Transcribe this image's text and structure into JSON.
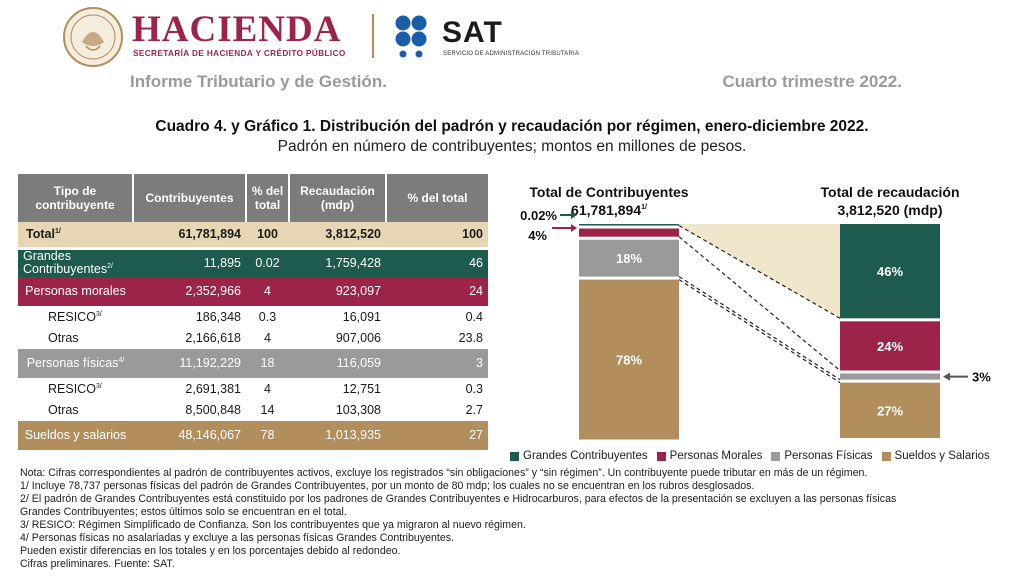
{
  "header": {
    "hacienda": "HACIENDA",
    "hacienda_sub": "SECRETARÍA DE HACIENDA Y CRÉDITO PÚBLICO",
    "sat": "SAT",
    "sat_sub": "SERVICIO DE ADMINISTRACIÓN TRIBUTARIA",
    "report": "Informe Tributario y de Gestión.",
    "period": "Cuarto trimestre 2022."
  },
  "title": "Cuadro 4. y Gráfico 1. Distribución del padrón y recaudación por régimen, enero-diciembre 2022.",
  "subtitle": "Padrón en número de contribuyentes; montos en millones de pesos.",
  "table": {
    "headers": [
      "Tipo de contribuyente",
      "Contribuyentes",
      "% del total",
      "Recaudación (mdp)",
      "% del total"
    ],
    "total": {
      "label": "Total",
      "sup": "1/",
      "contribuyentes": "61,781,894",
      "pct_c": "100",
      "recaudacion": "3,812,520",
      "pct_r": "100"
    },
    "grandes": {
      "label": "Grandes Contribuyentes",
      "sup": "2/",
      "contribuyentes": "11,895",
      "pct_c": "0.02",
      "recaudacion": "1,759,428",
      "pct_r": "46"
    },
    "morales": {
      "label": "Personas morales",
      "contribuyentes": "2,352,966",
      "pct_c": "4",
      "recaudacion": "923,097",
      "pct_r": "24"
    },
    "morales_resico": {
      "label": "RESICO",
      "sup": "3/",
      "contribuyentes": "186,348",
      "pct_c": "0.3",
      "recaudacion": "16,091",
      "pct_r": "0.4"
    },
    "morales_otras": {
      "label": "Otras",
      "contribuyentes": "2,166,618",
      "pct_c": "4",
      "recaudacion": "907,006",
      "pct_r": "23.8"
    },
    "fisicas": {
      "label": "Personas físicas",
      "sup": "4/",
      "contribuyentes": "11,192,229",
      "pct_c": "18",
      "recaudacion": "116,059",
      "pct_r": "3"
    },
    "fisicas_resico": {
      "label": "RESICO",
      "sup": "3/",
      "contribuyentes": "2,691,381",
      "pct_c": "4",
      "recaudacion": "12,751",
      "pct_r": "0.3"
    },
    "fisicas_otras": {
      "label": "Otras",
      "contribuyentes": "8,500,848",
      "pct_c": "14",
      "recaudacion": "103,308",
      "pct_r": "2.7"
    },
    "sueldos": {
      "label": "Sueldos y salarios",
      "contribuyentes": "48,146,067",
      "pct_c": "78",
      "recaudacion": "1,013,935",
      "pct_r": "27"
    }
  },
  "chart_data": {
    "type": "bar",
    "stacked": true,
    "categories": [
      "Total de Contribuyentes",
      "Total de recaudación"
    ],
    "category_subtitles": [
      "61,781,894",
      "3,812,520 (mdp)"
    ],
    "category_sups": [
      "1/",
      ""
    ],
    "series": [
      {
        "name": "Grandes Contribuyentes",
        "color": "#1e5b4f",
        "values": [
          0.02,
          46
        ],
        "labels": [
          "0.02%",
          "46%"
        ]
      },
      {
        "name": "Personas Morales",
        "color": "#9d2449",
        "values": [
          4,
          24
        ],
        "labels": [
          "4%",
          "24%"
        ]
      },
      {
        "name": "Personas Físicas",
        "color": "#9a9a9a",
        "values": [
          18,
          3
        ],
        "labels": [
          "18%",
          "3%"
        ]
      },
      {
        "name": "Sueldos y Salarios",
        "color": "#b38e5d",
        "values": [
          78,
          27
        ],
        "labels": [
          "78%",
          "27%"
        ]
      }
    ],
    "legend": [
      "Grandes Contribuyentes",
      "Personas Morales",
      "Personas Físicas",
      "Sueldos y Salarios"
    ],
    "legend_position": "bottom"
  },
  "notes": [
    "Nota: Cifras correspondientes al padrón de contribuyentes activos, excluye los registrados “sin obligaciones” y “sin régimen”. Un contribuyente puede tributar en más de un régimen.",
    "1/ Incluye 78,737 personas físicas del padrón de Grandes Contribuyentes, por un monto de 80 mdp; los cuales no se encuentran en los rubros desglosados.",
    "2/ El padrón de Grandes Contribuyentes está constituido por los padrones de Grandes Contribuyentes e Hidrocarburos, para efectos de la presentación se excluyen a las personas físicas",
    "Grandes Contribuyentes; estos últimos solo se encuentran en el total.",
    "3/ RESICO: Régimen Simplificado de Confianza. Son los contribuyentes que ya migraron al nuevo régimen.",
    "4/ Personas físicas no asalariadas y excluye a las personas físicas Grandes Contribuyentes.",
    "Pueden existir diferencias en los totales y en los porcentajes debido al redondeo.",
    "Cifras preliminares. Fuente: SAT."
  ]
}
